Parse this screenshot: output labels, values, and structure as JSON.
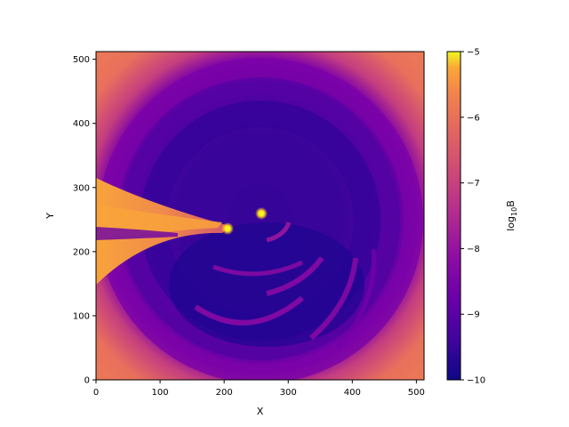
{
  "chart_data": {
    "type": "heatmap",
    "title": "",
    "xlabel": "X",
    "ylabel": "Y",
    "xlim": [
      0,
      512
    ],
    "ylim": [
      0,
      512
    ],
    "x_ticks": [
      0,
      100,
      200,
      300,
      400,
      500
    ],
    "y_ticks": [
      0,
      100,
      200,
      300,
      400,
      500
    ],
    "colormap": "plasma",
    "colorbar": {
      "label_base": "log",
      "label_sub": "10",
      "label_var": "B",
      "range": [
        -10,
        -5
      ],
      "ticks": [
        "−10",
        "−9",
        "−8",
        "−7",
        "−6",
        "−5"
      ]
    },
    "features": {
      "bright_points": [
        {
          "x": 260,
          "y": 259,
          "value": -5.0
        },
        {
          "x": 206,
          "y": 235,
          "value": -5.0
        }
      ],
      "background_edge_value": -6.8,
      "outer_ring_value": -8.4,
      "inner_region_value": -9.3,
      "jet_value": -6.9
    },
    "grid": false
  }
}
